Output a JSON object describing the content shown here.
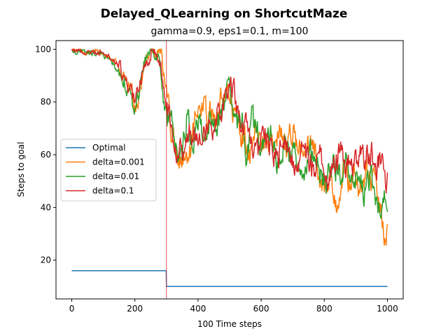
{
  "chart_data": {
    "type": "line",
    "title": "Delayed_QLearning on ShortcutMaze",
    "subtitle": "gamma=0.9, eps1=0.1, m=100",
    "xlabel": "100 Time steps",
    "ylabel": "Steps to goal",
    "xlim": [
      -50,
      1050
    ],
    "ylim": [
      5.3,
      103.3
    ],
    "xticks": [
      0,
      200,
      400,
      600,
      800,
      1000
    ],
    "yticks": [
      20,
      40,
      60,
      80,
      100
    ],
    "grid": false,
    "legend_position": "center-left",
    "vline": {
      "x": 300,
      "color": "#d62728"
    },
    "series": [
      {
        "name": "Optimal",
        "color": "#1f77b4",
        "points": [
          [
            0,
            16
          ],
          [
            299,
            16
          ],
          [
            300,
            10
          ],
          [
            1000,
            10
          ]
        ]
      },
      {
        "name": "delta=0.001",
        "color": "#ff7f0e",
        "points": [
          [
            0,
            100
          ],
          [
            40,
            99
          ],
          [
            80,
            99
          ],
          [
            100,
            98
          ],
          [
            130,
            96
          ],
          [
            150,
            94
          ],
          [
            170,
            88
          ],
          [
            190,
            84
          ],
          [
            205,
            76
          ],
          [
            220,
            88
          ],
          [
            240,
            99
          ],
          [
            260,
            100
          ],
          [
            275,
            100
          ],
          [
            285,
            99
          ],
          [
            290,
            92
          ],
          [
            300,
            85
          ],
          [
            315,
            70
          ],
          [
            330,
            60
          ],
          [
            345,
            55
          ],
          [
            360,
            57
          ],
          [
            375,
            60
          ],
          [
            390,
            70
          ],
          [
            405,
            75
          ],
          [
            420,
            80
          ],
          [
            430,
            73
          ],
          [
            445,
            78
          ],
          [
            460,
            72
          ],
          [
            475,
            82
          ],
          [
            495,
            85
          ],
          [
            510,
            78
          ],
          [
            530,
            70
          ],
          [
            550,
            65
          ],
          [
            565,
            58
          ],
          [
            580,
            68
          ],
          [
            600,
            62
          ],
          [
            620,
            70
          ],
          [
            640,
            60
          ],
          [
            660,
            70
          ],
          [
            680,
            62
          ],
          [
            700,
            72
          ],
          [
            720,
            62
          ],
          [
            740,
            58
          ],
          [
            760,
            65
          ],
          [
            780,
            55
          ],
          [
            800,
            48
          ],
          [
            820,
            50
          ],
          [
            840,
            42
          ],
          [
            860,
            55
          ],
          [
            880,
            48
          ],
          [
            900,
            52
          ],
          [
            920,
            45
          ],
          [
            935,
            55
          ],
          [
            950,
            48
          ],
          [
            965,
            50
          ],
          [
            975,
            40
          ],
          [
            985,
            35
          ],
          [
            995,
            25
          ],
          [
            1000,
            38
          ]
        ]
      },
      {
        "name": "delta=0.01",
        "color": "#2ca02c",
        "points": [
          [
            0,
            99
          ],
          [
            40,
            99
          ],
          [
            80,
            98
          ],
          [
            100,
            98
          ],
          [
            120,
            96
          ],
          [
            140,
            93
          ],
          [
            160,
            90
          ],
          [
            180,
            85
          ],
          [
            195,
            76
          ],
          [
            210,
            82
          ],
          [
            230,
            95
          ],
          [
            250,
            100
          ],
          [
            270,
            100
          ],
          [
            280,
            95
          ],
          [
            290,
            80
          ],
          [
            300,
            74
          ],
          [
            310,
            72
          ],
          [
            325,
            70
          ],
          [
            335,
            58
          ],
          [
            350,
            62
          ],
          [
            365,
            75
          ],
          [
            380,
            65
          ],
          [
            395,
            70
          ],
          [
            410,
            72
          ],
          [
            425,
            65
          ],
          [
            440,
            75
          ],
          [
            455,
            68
          ],
          [
            470,
            75
          ],
          [
            490,
            82
          ],
          [
            505,
            80
          ],
          [
            520,
            70
          ],
          [
            540,
            75
          ],
          [
            555,
            60
          ],
          [
            570,
            72
          ],
          [
            590,
            68
          ],
          [
            610,
            62
          ],
          [
            630,
            70
          ],
          [
            650,
            55
          ],
          [
            670,
            65
          ],
          [
            690,
            58
          ],
          [
            710,
            62
          ],
          [
            730,
            50
          ],
          [
            750,
            58
          ],
          [
            770,
            60
          ],
          [
            790,
            52
          ],
          [
            810,
            50
          ],
          [
            830,
            58
          ],
          [
            850,
            50
          ],
          [
            870,
            60
          ],
          [
            890,
            52
          ],
          [
            910,
            50
          ],
          [
            930,
            46
          ],
          [
            950,
            50
          ],
          [
            965,
            42
          ],
          [
            975,
            38
          ],
          [
            985,
            42
          ],
          [
            995,
            45
          ],
          [
            1000,
            46
          ]
        ]
      },
      {
        "name": "delta=0.1",
        "color": "#d62728",
        "points": [
          [
            0,
            100
          ],
          [
            40,
            99
          ],
          [
            80,
            99
          ],
          [
            100,
            99
          ],
          [
            120,
            97
          ],
          [
            140,
            95
          ],
          [
            160,
            91
          ],
          [
            180,
            86
          ],
          [
            195,
            80
          ],
          [
            210,
            84
          ],
          [
            230,
            94
          ],
          [
            250,
            99
          ],
          [
            270,
            100
          ],
          [
            280,
            96
          ],
          [
            290,
            86
          ],
          [
            300,
            78
          ],
          [
            315,
            74
          ],
          [
            330,
            65
          ],
          [
            345,
            60
          ],
          [
            360,
            62
          ],
          [
            375,
            70
          ],
          [
            390,
            68
          ],
          [
            405,
            72
          ],
          [
            420,
            70
          ],
          [
            435,
            75
          ],
          [
            450,
            70
          ],
          [
            465,
            78
          ],
          [
            480,
            80
          ],
          [
            500,
            88
          ],
          [
            515,
            82
          ],
          [
            530,
            75
          ],
          [
            545,
            70
          ],
          [
            560,
            68
          ],
          [
            575,
            62
          ],
          [
            590,
            60
          ],
          [
            610,
            70
          ],
          [
            630,
            62
          ],
          [
            650,
            58
          ],
          [
            670,
            65
          ],
          [
            690,
            60
          ],
          [
            710,
            55
          ],
          [
            730,
            62
          ],
          [
            750,
            58
          ],
          [
            770,
            55
          ],
          [
            790,
            60
          ],
          [
            810,
            52
          ],
          [
            830,
            55
          ],
          [
            850,
            62
          ],
          [
            870,
            58
          ],
          [
            890,
            55
          ],
          [
            910,
            60
          ],
          [
            930,
            58
          ],
          [
            950,
            62
          ],
          [
            965,
            55
          ],
          [
            980,
            58
          ],
          [
            990,
            52
          ],
          [
            1000,
            50
          ]
        ]
      }
    ]
  }
}
